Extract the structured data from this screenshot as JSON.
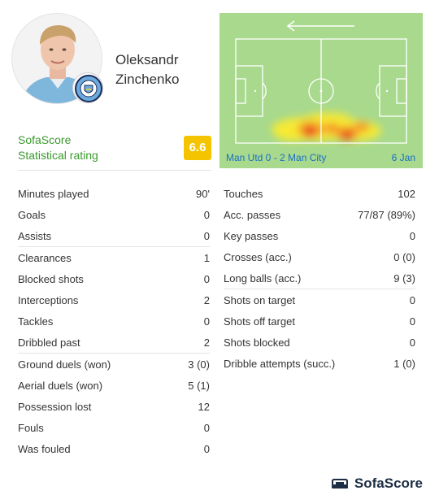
{
  "player": {
    "first_name": "Oleksandr",
    "last_name": "Zinchenko"
  },
  "rating": {
    "label_line1": "SofaScore",
    "label_line2": "Statistical rating",
    "value": "6.6",
    "color": "#f5c400"
  },
  "heatmap": {
    "direction": "left-arrow",
    "match": "Man Utd 0 - 2 Man City",
    "date": "6 Jan"
  },
  "stats_left": [
    [
      {
        "label": "Minutes played",
        "value": "90'"
      },
      {
        "label": "Goals",
        "value": "0"
      },
      {
        "label": "Assists",
        "value": "0"
      }
    ],
    [
      {
        "label": "Clearances",
        "value": "1"
      },
      {
        "label": "Blocked shots",
        "value": "0"
      },
      {
        "label": "Interceptions",
        "value": "2"
      },
      {
        "label": "Tackles",
        "value": "0"
      },
      {
        "label": "Dribbled past",
        "value": "2"
      }
    ],
    [
      {
        "label": "Ground duels (won)",
        "value": "3 (0)"
      },
      {
        "label": "Aerial duels (won)",
        "value": "5 (1)"
      },
      {
        "label": "Possession lost",
        "value": "12"
      },
      {
        "label": "Fouls",
        "value": "0"
      },
      {
        "label": "Was fouled",
        "value": "0"
      }
    ]
  ],
  "stats_right": [
    [
      {
        "label": "Touches",
        "value": "102"
      },
      {
        "label": "Acc. passes",
        "value": "77/87 (89%)"
      },
      {
        "label": "Key passes",
        "value": "0"
      },
      {
        "label": "Crosses (acc.)",
        "value": "0 (0)"
      },
      {
        "label": "Long balls (acc.)",
        "value": "9 (3)"
      }
    ],
    [
      {
        "label": "Shots on target",
        "value": "0"
      },
      {
        "label": "Shots off target",
        "value": "0"
      },
      {
        "label": "Shots blocked",
        "value": "0"
      },
      {
        "label": "Dribble attempts (succ.)",
        "value": "1 (0)"
      }
    ]
  ],
  "footer": {
    "brand": "SofaScore",
    "brand_color": "#1d2d44"
  }
}
